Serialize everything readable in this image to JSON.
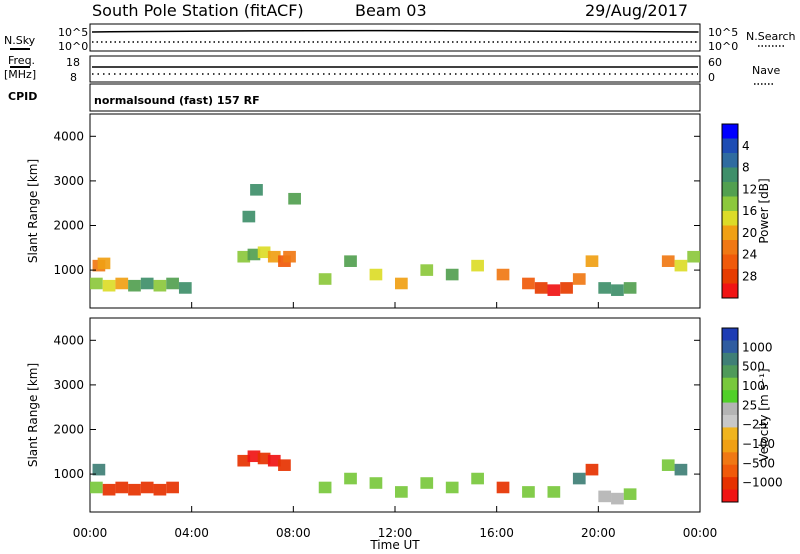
{
  "header": {
    "title": "South Pole Station (fitACF)",
    "beam": "Beam 03",
    "date": "29/Aug/2017"
  },
  "top_panels": {
    "nsky_label": "N.Sky",
    "nsearch_label": "N.Search",
    "nsky_ticks": [
      "10^5",
      "10^0"
    ],
    "nsearch_ticks": [
      "10^5",
      "10^0"
    ],
    "freq_label": "Freq.",
    "freq_unit": "[MHz]",
    "freq_ticks": [
      "18",
      "8"
    ],
    "nave_label": "Nave",
    "nave_ticks": [
      "60",
      "0"
    ],
    "cpid_label": "CPID",
    "cpid_value": "normalsound (fast) 157 RF"
  },
  "chart_data": [
    {
      "type": "heatmap",
      "name": "power",
      "ylabel": "Slant Range [km]",
      "ylim": [
        150,
        4500
      ],
      "yticks": [
        1000,
        2000,
        3000,
        4000
      ],
      "x_ticks": [
        "00:00",
        "04:00",
        "08:00",
        "12:00",
        "16:00",
        "20:00",
        "00:00"
      ],
      "x_range_hours": [
        0,
        24
      ],
      "colorbar_label": "Power [dB]",
      "colorbar_ticks": [
        "4",
        "8",
        "12",
        "16",
        "20",
        "24",
        "28"
      ],
      "colorbar_colors": [
        "#0000ff",
        "#1e4db4",
        "#2f6ca0",
        "#3f8f6a",
        "#52a050",
        "#8cc83c",
        "#dcdc28",
        "#f0a014",
        "#f07814",
        "#f05a0a",
        "#e63c00",
        "#f01414"
      ],
      "series": [
        {
          "name": "Power",
          "cells": [
            [
              0.0,
              700,
              14
            ],
            [
              0.5,
              650,
              16
            ],
            [
              1.0,
              700,
              18
            ],
            [
              1.5,
              650,
              12
            ],
            [
              2.0,
              700,
              10
            ],
            [
              2.5,
              650,
              14
            ],
            [
              3.0,
              700,
              12
            ],
            [
              3.5,
              600,
              8
            ],
            [
              0.1,
              1100,
              20
            ],
            [
              0.3,
              1150,
              18
            ],
            [
              5.8,
              1300,
              14
            ],
            [
              6.2,
              1350,
              12
            ],
            [
              6.6,
              1400,
              16
            ],
            [
              7.0,
              1300,
              18
            ],
            [
              7.4,
              1200,
              22
            ],
            [
              7.6,
              1300,
              20
            ],
            [
              6.0,
              2200,
              10
            ],
            [
              6.3,
              2800,
              8
            ],
            [
              7.8,
              2600,
              12
            ],
            [
              9.0,
              800,
              14
            ],
            [
              10.0,
              1200,
              12
            ],
            [
              11.0,
              900,
              16
            ],
            [
              12.0,
              700,
              18
            ],
            [
              13.0,
              1000,
              14
            ],
            [
              14.0,
              900,
              12
            ],
            [
              15.0,
              1100,
              16
            ],
            [
              16.0,
              900,
              20
            ],
            [
              17.0,
              700,
              22
            ],
            [
              17.5,
              600,
              26
            ],
            [
              18.0,
              550,
              28
            ],
            [
              18.5,
              600,
              24
            ],
            [
              19.0,
              800,
              20
            ],
            [
              19.5,
              1200,
              18
            ],
            [
              20.0,
              600,
              10
            ],
            [
              20.5,
              550,
              8
            ],
            [
              21.0,
              600,
              12
            ],
            [
              22.5,
              1200,
              20
            ],
            [
              23.0,
              1100,
              16
            ],
            [
              23.5,
              1300,
              14
            ]
          ]
        }
      ]
    },
    {
      "type": "heatmap",
      "name": "velocity",
      "xlabel": "Time UT",
      "ylabel": "Slant Range [km]",
      "ylim": [
        150,
        4500
      ],
      "yticks": [
        1000,
        2000,
        3000,
        4000
      ],
      "x_ticks": [
        "00:00",
        "04:00",
        "08:00",
        "12:00",
        "16:00",
        "20:00",
        "00:00"
      ],
      "x_range_hours": [
        0,
        24
      ],
      "colorbar_label": "Velocity [m s⁻¹]",
      "colorbar_ticks": [
        "1000",
        "500",
        "100",
        "25",
        "−25",
        "−100",
        "−500",
        "−1000"
      ],
      "colorbar_colors": [
        "#1e3cb4",
        "#2f5ca0",
        "#3f7f76",
        "#4f9a5a",
        "#78c83c",
        "#50d028",
        "#b4b4b4",
        "#c8c8c8",
        "#f0b41e",
        "#f0a014",
        "#f07814",
        "#f05a0a",
        "#e63200",
        "#f01414"
      ],
      "series": [
        {
          "name": "Velocity",
          "cells": [
            [
              0.0,
              700,
              200
            ],
            [
              0.5,
              650,
              -300
            ],
            [
              1.0,
              700,
              -400
            ],
            [
              1.5,
              650,
              -300
            ],
            [
              2.0,
              700,
              -500
            ],
            [
              2.5,
              650,
              -200
            ],
            [
              3.0,
              700,
              -300
            ],
            [
              0.1,
              1100,
              500
            ],
            [
              5.8,
              1300,
              -500
            ],
            [
              6.2,
              1400,
              -600
            ],
            [
              6.6,
              1350,
              -500
            ],
            [
              7.0,
              1300,
              -700
            ],
            [
              7.4,
              1200,
              -400
            ],
            [
              9.0,
              700,
              100
            ],
            [
              10.0,
              900,
              100
            ],
            [
              11.0,
              800,
              300
            ],
            [
              12.0,
              600,
              200
            ],
            [
              13.0,
              800,
              100
            ],
            [
              14.0,
              700,
              200
            ],
            [
              15.0,
              900,
              150
            ],
            [
              16.0,
              700,
              -200
            ],
            [
              17.0,
              600,
              300
            ],
            [
              18.0,
              600,
              200
            ],
            [
              19.0,
              900,
              500
            ],
            [
              19.5,
              1100,
              -300
            ],
            [
              20.0,
              500,
              50
            ],
            [
              20.5,
              450,
              80
            ],
            [
              21.0,
              550,
              150
            ],
            [
              22.5,
              1200,
              300
            ],
            [
              23.0,
              1100,
              600
            ]
          ]
        }
      ]
    }
  ]
}
